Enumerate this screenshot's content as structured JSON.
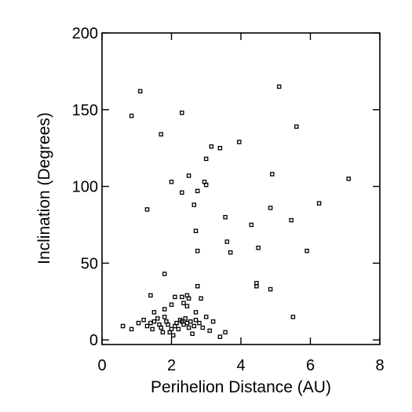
{
  "chart_data": {
    "type": "scatter",
    "title": "",
    "xlabel": "Perihelion Distance (AU)",
    "ylabel": "Inclination (Degrees)",
    "xlim": [
      0,
      8
    ],
    "ylim": [
      -3,
      200
    ],
    "xticks": [
      0,
      2,
      4,
      6,
      8
    ],
    "yticks": [
      0,
      50,
      100,
      150,
      200
    ],
    "grid": false,
    "marker": "square",
    "series": [
      {
        "points": [
          [
            1.1,
            162
          ],
          [
            0.85,
            146
          ],
          [
            1.7,
            134
          ],
          [
            2.3,
            148
          ],
          [
            5.1,
            165
          ],
          [
            5.6,
            139
          ],
          [
            3.95,
            129
          ],
          [
            3.15,
            126
          ],
          [
            3.4,
            125
          ],
          [
            3.0,
            118
          ],
          [
            2.5,
            107
          ],
          [
            2.0,
            103
          ],
          [
            2.3,
            96
          ],
          [
            2.75,
            97
          ],
          [
            2.95,
            103
          ],
          [
            3.0,
            101
          ],
          [
            4.9,
            108
          ],
          [
            7.1,
            105
          ],
          [
            1.3,
            85
          ],
          [
            2.65,
            88
          ],
          [
            4.85,
            86
          ],
          [
            6.25,
            89
          ],
          [
            3.55,
            80
          ],
          [
            5.45,
            78
          ],
          [
            4.3,
            75
          ],
          [
            2.7,
            71
          ],
          [
            3.6,
            64
          ],
          [
            4.5,
            60
          ],
          [
            3.7,
            57
          ],
          [
            5.9,
            58
          ],
          [
            2.75,
            58
          ],
          [
            1.8,
            43
          ],
          [
            4.45,
            37
          ],
          [
            4.45,
            35
          ],
          [
            2.75,
            35
          ],
          [
            4.85,
            33
          ],
          [
            1.4,
            29
          ],
          [
            2.1,
            28
          ],
          [
            2.3,
            28
          ],
          [
            2.45,
            29
          ],
          [
            2.5,
            27
          ],
          [
            2.85,
            27
          ],
          [
            2.0,
            23
          ],
          [
            2.35,
            24
          ],
          [
            2.45,
            22
          ],
          [
            1.8,
            20
          ],
          [
            1.5,
            18
          ],
          [
            2.7,
            18
          ],
          [
            5.5,
            15
          ],
          [
            0.6,
            9
          ],
          [
            0.85,
            7
          ],
          [
            1.05,
            11
          ],
          [
            1.2,
            13
          ],
          [
            1.3,
            9
          ],
          [
            1.4,
            11
          ],
          [
            1.45,
            7
          ],
          [
            1.5,
            12
          ],
          [
            1.6,
            14
          ],
          [
            1.65,
            10
          ],
          [
            1.7,
            8
          ],
          [
            1.75,
            5
          ],
          [
            1.8,
            15
          ],
          [
            1.85,
            12
          ],
          [
            1.9,
            10
          ],
          [
            1.95,
            5
          ],
          [
            2.0,
            7
          ],
          [
            2.05,
            3
          ],
          [
            2.1,
            9
          ],
          [
            2.15,
            11
          ],
          [
            2.2,
            7
          ],
          [
            2.25,
            13
          ],
          [
            2.3,
            12
          ],
          [
            2.35,
            10
          ],
          [
            2.4,
            14
          ],
          [
            2.45,
            11
          ],
          [
            2.5,
            8
          ],
          [
            2.55,
            12
          ],
          [
            2.6,
            4
          ],
          [
            2.65,
            9
          ],
          [
            2.7,
            13
          ],
          [
            2.8,
            11
          ],
          [
            2.9,
            8
          ],
          [
            3.0,
            15
          ],
          [
            3.1,
            6
          ],
          [
            3.2,
            12
          ],
          [
            3.4,
            2
          ],
          [
            3.55,
            5
          ]
        ]
      }
    ]
  }
}
